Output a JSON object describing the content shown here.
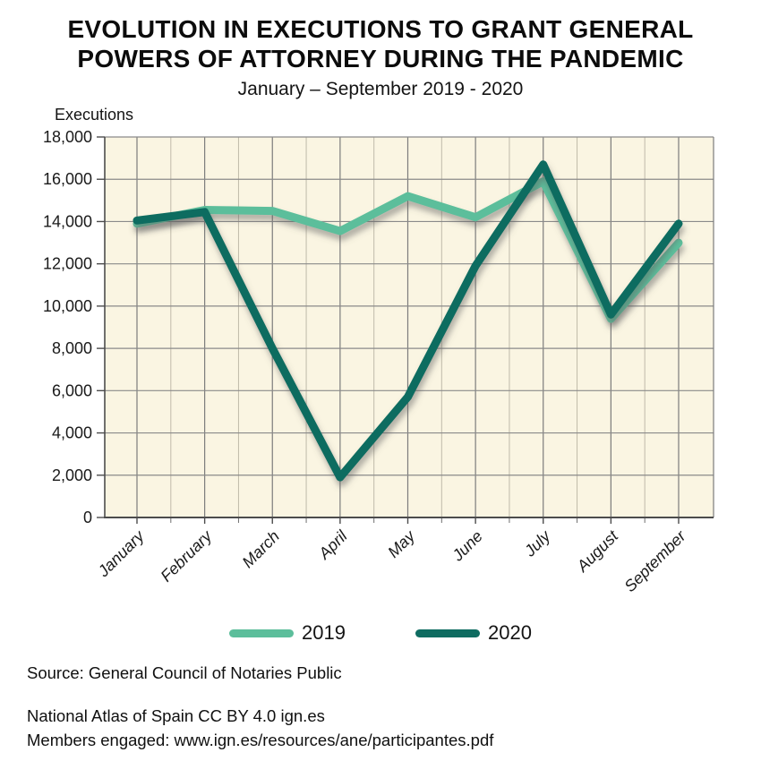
{
  "chart_data": {
    "type": "line",
    "title_lines": [
      "EVOLUTION IN EXECUTIONS TO GRANT GENERAL",
      "POWERS OF ATTORNEY DURING THE PANDEMIC"
    ],
    "subtitle": "January – September 2019 - 2020",
    "ylabel": "Executions",
    "xlabel": "",
    "categories": [
      "January",
      "February",
      "March",
      "April",
      "May",
      "June",
      "July",
      "August",
      "September"
    ],
    "series": [
      {
        "name": "2019",
        "color": "#5CBE9B",
        "values": [
          13900,
          14550,
          14500,
          13550,
          15200,
          14200,
          15900,
          9400,
          13000
        ]
      },
      {
        "name": "2020",
        "color": "#0F6C61",
        "values": [
          14050,
          14450,
          8000,
          1900,
          5700,
          11900,
          16700,
          9600,
          13900
        ]
      }
    ],
    "ylim": [
      0,
      18000
    ],
    "ytick_step": 2000,
    "ytick_labels": [
      "0",
      "2,000",
      "4,000",
      "6,000",
      "8,000",
      "10,000",
      "12,000",
      "14,000",
      "16,000",
      "18,000"
    ],
    "grid": true,
    "legend_position": "bottom",
    "plot_bg": "#FAF5E2"
  },
  "footer": {
    "source": "Source: General Council of Notaries Public",
    "attribution": "National Atlas of Spain CC BY 4.0 ign.es",
    "members": "Members engaged: www.ign.es/resources/ane/participantes.pdf"
  }
}
